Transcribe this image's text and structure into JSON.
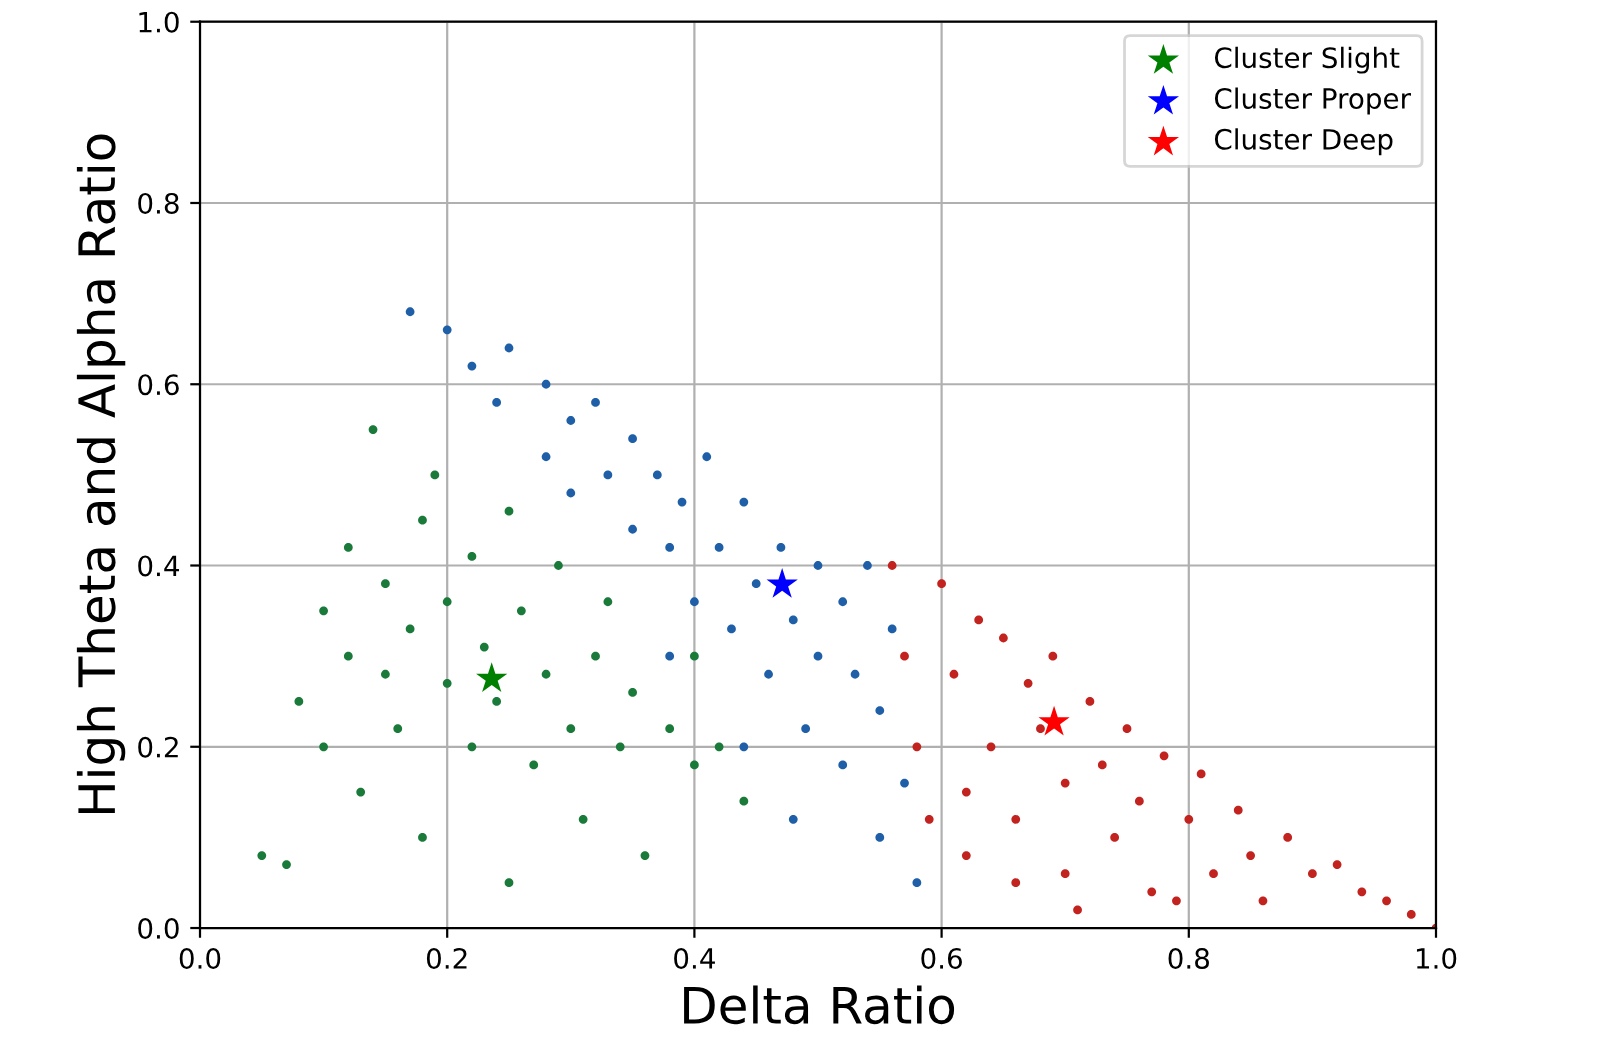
{
  "chart_data": {
    "type": "scatter",
    "xlabel": "Delta Ratio",
    "ylabel": "High Theta and Alpha Ratio",
    "xlim": [
      0,
      1
    ],
    "ylim": [
      0,
      1
    ],
    "xticks": [
      {
        "value": 0,
        "label": "0.0"
      },
      {
        "value": 0.2,
        "label": "0.2"
      },
      {
        "value": 0.4,
        "label": "0.4"
      },
      {
        "value": 0.6,
        "label": "0.6"
      },
      {
        "value": 0.8,
        "label": "0.8"
      },
      {
        "value": 1,
        "label": "1.0"
      }
    ],
    "yticks": [
      {
        "value": 0,
        "label": "0.0"
      },
      {
        "value": 0.2,
        "label": "0.2"
      },
      {
        "value": 0.4,
        "label": "0.4"
      },
      {
        "value": 0.6,
        "label": "0.6"
      },
      {
        "value": 0.8,
        "label": "0.8"
      },
      {
        "value": 1,
        "label": "1.0"
      }
    ],
    "grid": true,
    "legend": "top right",
    "series": [
      {
        "color": "#1a7a3a",
        "marker": "circle",
        "x": [
          0.05,
          0.07,
          0.08,
          0.1,
          0.1,
          0.12,
          0.12,
          0.13,
          0.15,
          0.15,
          0.16,
          0.17,
          0.18,
          0.18,
          0.19,
          0.2,
          0.2,
          0.22,
          0.22,
          0.23,
          0.24,
          0.25,
          0.26,
          0.27,
          0.28,
          0.29,
          0.3,
          0.31,
          0.32,
          0.33,
          0.34,
          0.35,
          0.36,
          0.38,
          0.4,
          0.4,
          0.42,
          0.44,
          0.14,
          0.25
        ],
        "values": [
          0.08,
          0.07,
          0.25,
          0.35,
          0.2,
          0.42,
          0.3,
          0.15,
          0.28,
          0.38,
          0.22,
          0.33,
          0.1,
          0.45,
          0.5,
          0.27,
          0.36,
          0.2,
          0.41,
          0.31,
          0.25,
          0.05,
          0.35,
          0.18,
          0.28,
          0.4,
          0.22,
          0.12,
          0.3,
          0.36,
          0.2,
          0.26,
          0.08,
          0.22,
          0.18,
          0.3,
          0.2,
          0.14,
          0.55,
          0.46
        ]
      },
      {
        "color": "#1f5fa8",
        "marker": "circle",
        "x": [
          0.17,
          0.2,
          0.22,
          0.24,
          0.25,
          0.28,
          0.28,
          0.3,
          0.3,
          0.32,
          0.33,
          0.35,
          0.35,
          0.37,
          0.38,
          0.39,
          0.4,
          0.41,
          0.42,
          0.43,
          0.44,
          0.45,
          0.46,
          0.47,
          0.48,
          0.49,
          0.5,
          0.5,
          0.52,
          0.52,
          0.53,
          0.54,
          0.55,
          0.55,
          0.56,
          0.57,
          0.58,
          0.48,
          0.44,
          0.38
        ],
        "values": [
          0.68,
          0.66,
          0.62,
          0.58,
          0.64,
          0.6,
          0.52,
          0.56,
          0.48,
          0.58,
          0.5,
          0.44,
          0.54,
          0.5,
          0.42,
          0.47,
          0.36,
          0.52,
          0.42,
          0.33,
          0.47,
          0.38,
          0.28,
          0.42,
          0.34,
          0.22,
          0.4,
          0.3,
          0.36,
          0.18,
          0.28,
          0.4,
          0.1,
          0.24,
          0.33,
          0.16,
          0.05,
          0.12,
          0.2,
          0.3
        ]
      },
      {
        "color": "#c2231f",
        "marker": "circle",
        "x": [
          0.56,
          0.57,
          0.58,
          0.59,
          0.6,
          0.61,
          0.62,
          0.63,
          0.64,
          0.65,
          0.66,
          0.67,
          0.68,
          0.69,
          0.7,
          0.7,
          0.72,
          0.73,
          0.74,
          0.75,
          0.76,
          0.77,
          0.78,
          0.8,
          0.81,
          0.82,
          0.84,
          0.85,
          0.86,
          0.88,
          0.9,
          0.92,
          0.94,
          0.96,
          0.98,
          1.0,
          0.66,
          0.62,
          0.71,
          0.79
        ],
        "values": [
          0.4,
          0.3,
          0.2,
          0.12,
          0.38,
          0.28,
          0.08,
          0.34,
          0.2,
          0.32,
          0.12,
          0.27,
          0.22,
          0.3,
          0.16,
          0.06,
          0.25,
          0.18,
          0.1,
          0.22,
          0.14,
          0.04,
          0.19,
          0.12,
          0.17,
          0.06,
          0.13,
          0.08,
          0.03,
          0.1,
          0.06,
          0.07,
          0.04,
          0.03,
          0.015,
          0.0,
          0.05,
          0.15,
          0.02,
          0.03
        ]
      },
      {
        "name": "Cluster Slight",
        "color": "#008000",
        "marker": "star",
        "x": [
          0.236
        ],
        "values": [
          0.275
        ]
      },
      {
        "name": "Cluster Proper",
        "color": "#0000ff",
        "marker": "star",
        "x": [
          0.471
        ],
        "values": [
          0.379
        ]
      },
      {
        "name": "Cluster Deep",
        "color": "#ff0000",
        "marker": "star",
        "x": [
          0.691
        ],
        "values": [
          0.227
        ]
      }
    ]
  }
}
